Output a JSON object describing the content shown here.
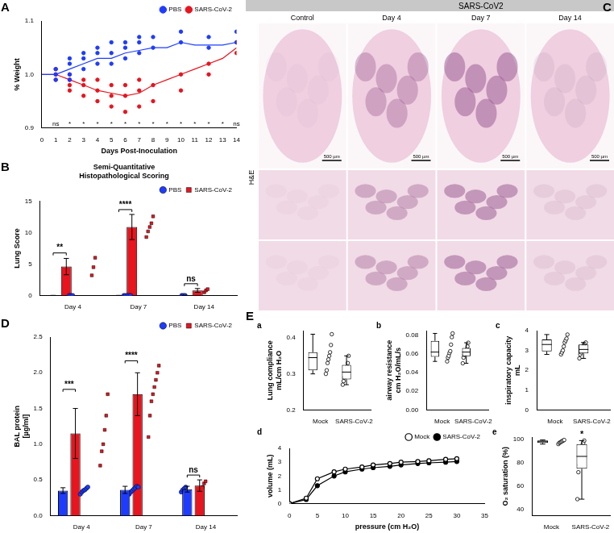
{
  "chart_data": [
    {
      "type": "line",
      "panel": "A",
      "x_label": "Days Post-Inoculation",
      "y_label": "% Weight",
      "x": [
        0,
        1,
        2,
        3,
        4,
        5,
        6,
        7,
        8,
        9,
        10,
        11,
        12,
        13,
        14
      ],
      "xlim": [
        0,
        14
      ],
      "xticks": [
        0,
        1,
        2,
        3,
        4,
        5,
        6,
        7,
        8,
        9,
        10,
        11,
        12,
        13,
        14
      ],
      "ylim": [
        0.9,
        1.1
      ],
      "yticks": [
        0.9,
        {
          "value": 1,
          "label": "1.0"
        },
        1.1
      ],
      "grid": false,
      "legend": "top-right",
      "series": [
        {
          "name": "PBS",
          "color": "#1e3cff",
          "marker": "circle",
          "values": [
            1.0,
            1.0,
            1.01,
            1.02,
            1.03,
            1.03,
            1.04,
            1.045,
            1.05,
            1.05,
            1.06,
            1.055,
            1.055,
            1.055,
            1.06
          ],
          "points": [
            [
              1,
              1.0
            ],
            [
              1,
              1.01
            ],
            [
              1,
              0.99
            ],
            [
              2,
              1.02
            ],
            [
              2,
              1.0
            ],
            [
              2,
              0.99
            ],
            [
              2,
              1.03
            ],
            [
              3,
              1.03
            ],
            [
              3,
              1.01
            ],
            [
              3,
              1.04
            ],
            [
              4,
              1.04
            ],
            [
              4,
              1.02
            ],
            [
              4,
              1.05
            ],
            [
              5,
              1.04
            ],
            [
              5,
              1.02
            ],
            [
              5,
              1.06
            ],
            [
              6,
              1.05
            ],
            [
              6,
              1.03
            ],
            [
              6,
              1.06
            ],
            [
              7,
              1.06
            ],
            [
              7,
              1.04
            ],
            [
              7,
              1.07
            ],
            [
              8,
              1.05
            ],
            [
              8,
              1.07
            ],
            [
              10,
              1.06
            ],
            [
              10,
              1.08
            ],
            [
              12,
              1.05
            ],
            [
              12,
              1.07
            ],
            [
              14,
              1.06
            ],
            [
              14,
              1.08
            ]
          ]
        },
        {
          "name": "SARS-CoV-2",
          "color": "#e8141e",
          "marker": "circle",
          "values": [
            1.0,
            1.0,
            0.99,
            0.98,
            0.97,
            0.965,
            0.96,
            0.965,
            0.98,
            0.99,
            1.0,
            1.01,
            1.02,
            1.03,
            1.05
          ],
          "points": [
            [
              1,
              1.0
            ],
            [
              1,
              0.99
            ],
            [
              1,
              1.01
            ],
            [
              2,
              0.99
            ],
            [
              2,
              0.98
            ],
            [
              2,
              1.0
            ],
            [
              2,
              0.97
            ],
            [
              3,
              0.98
            ],
            [
              3,
              0.96
            ],
            [
              3,
              0.99
            ],
            [
              4,
              0.97
            ],
            [
              4,
              0.95
            ],
            [
              4,
              0.99
            ],
            [
              5,
              0.96
            ],
            [
              5,
              0.94
            ],
            [
              5,
              0.98
            ],
            [
              6,
              0.96
            ],
            [
              6,
              0.93
            ],
            [
              6,
              0.98
            ],
            [
              7,
              0.97
            ],
            [
              7,
              0.94
            ],
            [
              7,
              0.99
            ],
            [
              8,
              0.98
            ],
            [
              8,
              0.95
            ],
            [
              10,
              1.0
            ],
            [
              10,
              0.97
            ],
            [
              12,
              1.02
            ],
            [
              12,
              1.0
            ],
            [
              14,
              1.04
            ],
            [
              14,
              1.06
            ]
          ]
        }
      ],
      "significance": {
        "x": [
          1,
          2,
          3,
          4,
          5,
          6,
          7,
          8,
          9,
          10,
          11,
          12,
          13,
          14
        ],
        "labels": [
          "ns",
          "*",
          "*",
          "*",
          "*",
          "*",
          "*",
          "*",
          "*",
          "*",
          "*",
          "*",
          "*",
          "ns"
        ]
      }
    },
    {
      "type": "bar",
      "panel": "B",
      "title": [
        "Semi-Quantitative",
        "Histopathological Scoring"
      ],
      "y_label": "Lung Score",
      "categories": [
        "Day 4",
        "Day 7",
        "Day 14"
      ],
      "ylim": [
        0,
        15
      ],
      "yticks": [
        0,
        5,
        10,
        15
      ],
      "grid": false,
      "legend": "top-right",
      "series": [
        {
          "name": "PBS",
          "color": "#1e3cff",
          "marker": "circle",
          "values": [
            0,
            0,
            0
          ],
          "errors": [
            0,
            0,
            0
          ],
          "points": [
            [
              0,
              0,
              0
            ],
            [
              0,
              0,
              0,
              0,
              0
            ],
            [
              0,
              0,
              0
            ]
          ]
        },
        {
          "name": "SARS-CoV-2",
          "color": "#e8141e",
          "marker": "square",
          "values": [
            4.6,
            10.9,
            0.8
          ],
          "errors": [
            1.3,
            2.0,
            0.3
          ],
          "points": [
            [
              3.2,
              4.5,
              6.0
            ],
            [
              9.3,
              10.2,
              10.9,
              11.5,
              12.6
            ],
            [
              0.5,
              0.8,
              1.0
            ]
          ]
        }
      ],
      "significance": [
        "**",
        "****",
        "ns"
      ]
    },
    {
      "type": "bar",
      "panel": "D",
      "y_label": [
        "BAL protein",
        "[µg/ml]"
      ],
      "categories": [
        "Day 4",
        "Day 7",
        "Day 14"
      ],
      "ylim": [
        0,
        2.5
      ],
      "yticks": [
        {
          "value": 0,
          "label": "0.0"
        },
        0.5,
        {
          "value": 1,
          "label": "1.0"
        },
        1.5,
        {
          "value": 2,
          "label": "2.0"
        },
        2.5
      ],
      "grid": false,
      "legend": "top-right",
      "series": [
        {
          "name": "PBS",
          "color": "#1e3cff",
          "marker": "circle",
          "values": [
            0.35,
            0.36,
            0.37
          ],
          "errors": [
            0.04,
            0.05,
            0.04
          ],
          "points": [
            [
              0.3,
              0.33,
              0.35,
              0.36,
              0.38,
              0.4
            ],
            [
              0.3,
              0.33,
              0.35,
              0.37,
              0.39,
              0.41,
              0.4
            ],
            [
              0.33,
              0.36,
              0.38,
              0.4
            ]
          ]
        },
        {
          "name": "SARS-CoV-2",
          "color": "#e8141e",
          "marker": "square",
          "values": [
            1.15,
            1.7,
            0.42
          ],
          "errors": [
            0.35,
            0.3,
            0.08
          ],
          "points": [
            [
              0.7,
              0.9,
              1.0,
              1.2,
              1.4,
              1.7
            ],
            [
              1.1,
              1.4,
              1.6,
              1.7,
              1.8,
              1.9,
              2.0,
              2.1
            ],
            [
              0.35,
              0.4,
              0.45,
              0.48
            ]
          ]
        }
      ],
      "significance": [
        "***",
        "****",
        "ns"
      ]
    },
    {
      "type": "box",
      "panel": "a",
      "y_label": [
        "Lung compliance",
        "mL/cm H₂O"
      ],
      "categories": [
        "Mock",
        "SARS-CoV-2"
      ],
      "ylim": [
        0.2,
        0.42
      ],
      "yticks": [
        0.2,
        0.3,
        0.4
      ],
      "grid": false,
      "color": "#000000",
      "marker": "circle_open",
      "boxes": [
        {
          "min": 0.3,
          "q1": 0.31,
          "median": 0.345,
          "q3": 0.36,
          "max": 0.41
        },
        {
          "min": 0.27,
          "q1": 0.285,
          "median": 0.305,
          "q3": 0.325,
          "max": 0.35
        }
      ],
      "points": [
        [
          0.3,
          0.31,
          0.33,
          0.34,
          0.35,
          0.36,
          0.38,
          0.41
        ],
        [
          0.27,
          0.28,
          0.29,
          0.3,
          0.31,
          0.32,
          0.33,
          0.35
        ]
      ]
    },
    {
      "type": "box",
      "panel": "b",
      "y_label": [
        "airway resistance",
        "cm H₂O/mL/s"
      ],
      "categories": [
        "Mock",
        "SARS-CoV-2"
      ],
      "ylim": [
        0,
        0.085
      ],
      "yticks": [
        {
          "value": 0,
          "label": "0.00"
        },
        {
          "value": 0.02,
          "label": "0.02"
        },
        {
          "value": 0.04,
          "label": "0.04"
        },
        {
          "value": 0.06,
          "label": "0.06"
        },
        {
          "value": 0.08,
          "label": "0.08"
        }
      ],
      "grid": false,
      "color": "#000000",
      "marker": "circle_open",
      "boxes": [
        {
          "min": 0.052,
          "q1": 0.057,
          "median": 0.062,
          "q3": 0.074,
          "max": 0.082
        },
        {
          "min": 0.05,
          "q1": 0.0575,
          "median": 0.062,
          "q3": 0.0665,
          "max": 0.072
        }
      ],
      "points": [
        [
          0.052,
          0.056,
          0.058,
          0.061,
          0.063,
          0.07,
          0.078,
          0.082
        ],
        [
          0.05,
          0.056,
          0.059,
          0.061,
          0.063,
          0.065,
          0.068,
          0.072
        ]
      ]
    },
    {
      "type": "box",
      "panel": "c",
      "y_label": [
        "inspiratory capacity",
        "mL"
      ],
      "categories": [
        "Mock",
        "SARS-CoV-2"
      ],
      "ylim": [
        0,
        4
      ],
      "yticks": [
        0,
        1,
        2,
        3,
        4
      ],
      "grid": false,
      "color": "#000000",
      "marker": "circle_open",
      "boxes": [
        {
          "min": 2.8,
          "q1": 2.95,
          "median": 3.3,
          "q3": 3.55,
          "max": 3.8
        },
        {
          "min": 2.6,
          "q1": 2.85,
          "median": 3.05,
          "q3": 3.3,
          "max": 3.4
        }
      ],
      "points": [
        [
          2.8,
          2.9,
          3.0,
          3.2,
          3.4,
          3.5,
          3.6,
          3.8
        ],
        [
          2.6,
          2.8,
          2.9,
          3.0,
          3.1,
          3.3,
          3.35,
          3.4
        ]
      ]
    },
    {
      "type": "line",
      "panel": "d",
      "x_label": "pressure (cm H₂O)",
      "y_label": "volume (mL)",
      "x": [
        0,
        3,
        5,
        8,
        10,
        13,
        15,
        18,
        20,
        23,
        25,
        28,
        30
      ],
      "xlim": [
        0,
        35
      ],
      "xticks": [
        0,
        5,
        10,
        15,
        20,
        25,
        30,
        35
      ],
      "ylim": [
        0,
        4
      ],
      "yticks": [
        0,
        1,
        2,
        3,
        4
      ],
      "grid": false,
      "legend": "top-right",
      "series": [
        {
          "name": "Mock",
          "color": "#000000",
          "marker": "circle_open",
          "values": [
            0,
            0.4,
            1.8,
            2.3,
            2.5,
            2.65,
            2.8,
            2.9,
            3.0,
            3.05,
            3.1,
            3.2,
            3.25
          ]
        },
        {
          "name": "SARS-CoV-2",
          "color": "#000000",
          "marker": "circle",
          "values": [
            0,
            0.3,
            1.3,
            2.0,
            2.3,
            2.5,
            2.6,
            2.7,
            2.8,
            2.9,
            2.95,
            3.0,
            3.05
          ]
        }
      ]
    },
    {
      "type": "box",
      "panel": "e",
      "y_label": "O₂ saturation (%)",
      "categories": [
        "Mock",
        "SARS-CoV-2"
      ],
      "ylim": [
        35,
        102
      ],
      "yticks": [
        40,
        60,
        80,
        100
      ],
      "grid": false,
      "color": "#000000",
      "marker": "circle_open",
      "boxes": [
        {
          "min": 96,
          "q1": 97,
          "median": 98,
          "q3": 99,
          "max": 99.5
        },
        {
          "min": 49,
          "q1": 75,
          "median": 85.5,
          "q3": 96,
          "max": 99
        }
      ],
      "points": [
        [
          96,
          97,
          97.5,
          98,
          98.5,
          99,
          99.5
        ],
        [
          49,
          72,
          78,
          83,
          88,
          95,
          97,
          99
        ]
      ],
      "annotations": [
        {
          "category": "SARS-CoV-2",
          "text": "*"
        }
      ]
    }
  ],
  "histology": {
    "panel": "C",
    "header": "SARS-CoV2",
    "columns": [
      "Control",
      "Day 4",
      "Day 7",
      "Day 14"
    ],
    "row_label": "H&E",
    "scale_bar": "500 µm"
  },
  "group_label": "E"
}
